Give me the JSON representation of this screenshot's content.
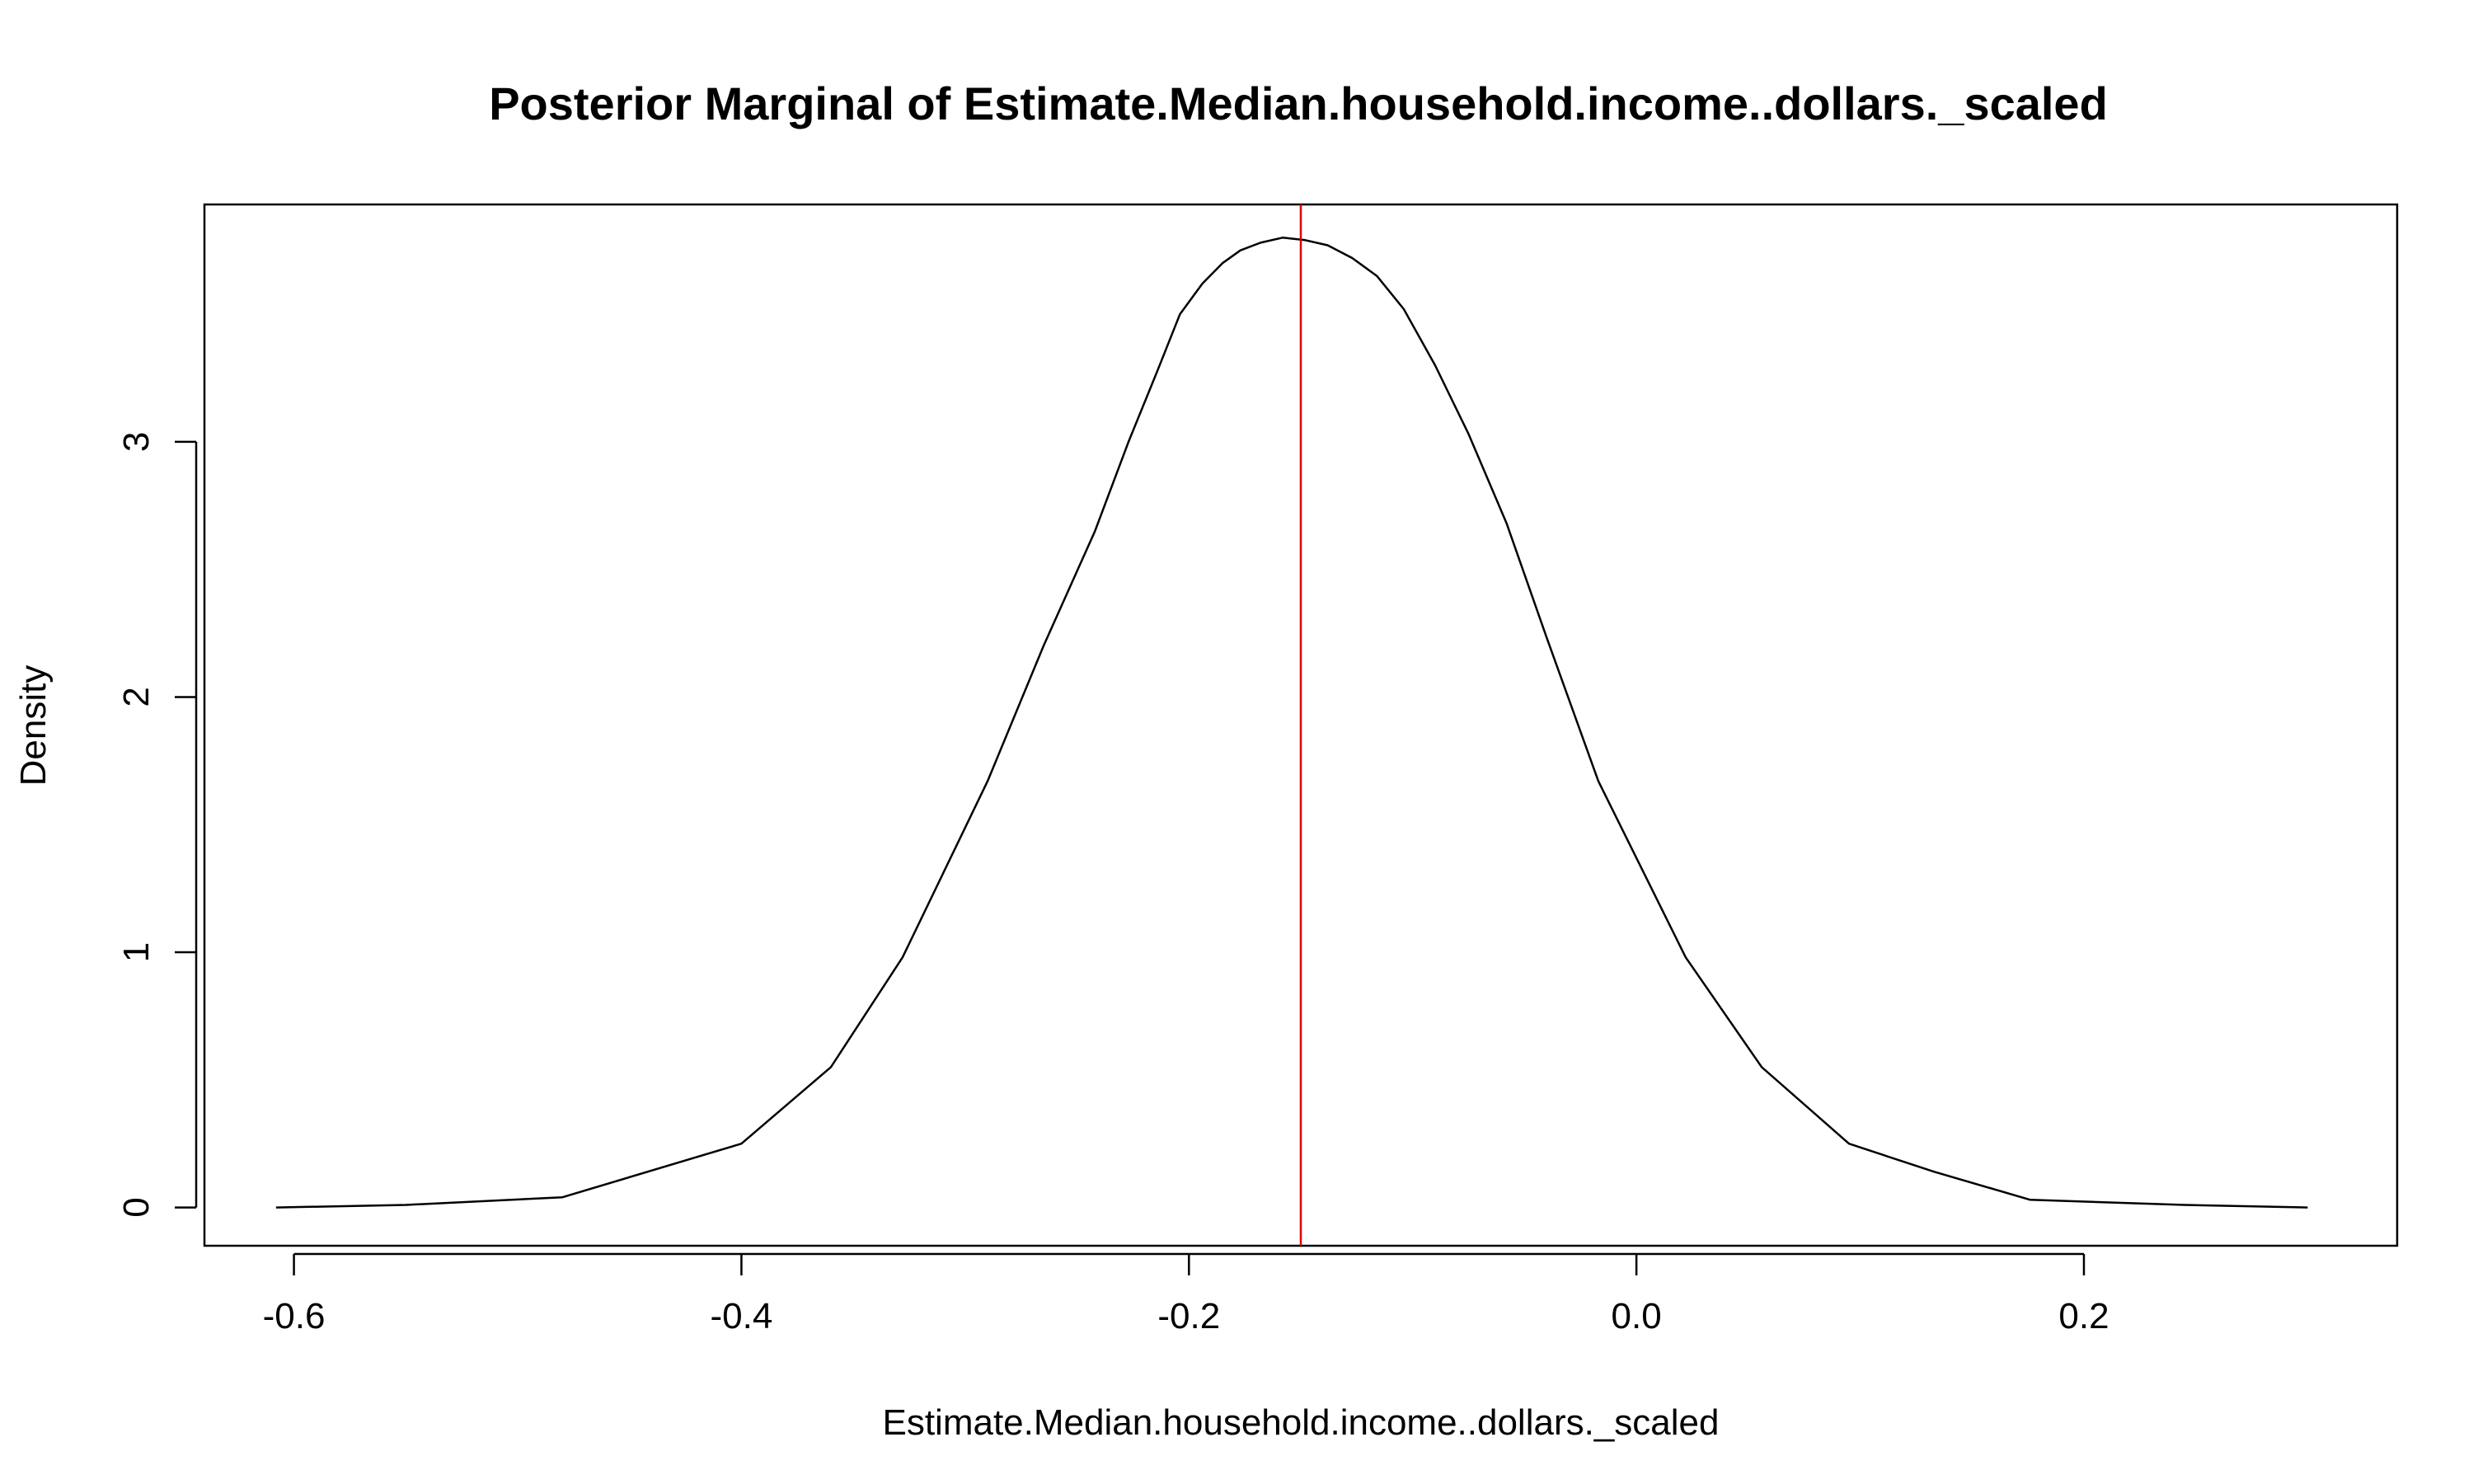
{
  "chart_data": {
    "type": "line",
    "title": "Posterior Marginal of Estimate.Median.household.income..dollars._scaled",
    "xlabel": "Estimate.Median.household.income..dollars._scaled",
    "ylabel": "Density",
    "xlim": [
      -0.64,
      0.34
    ],
    "ylim": [
      -0.15,
      3.93
    ],
    "x_ticks": [
      -0.6,
      -0.4,
      -0.2,
      0.0,
      0.2
    ],
    "x_tick_labels": [
      "-0.6",
      "-0.4",
      "-0.2",
      "0.0",
      "0.2"
    ],
    "y_ticks": [
      0,
      1,
      2,
      3
    ],
    "y_tick_labels": [
      "0",
      "1",
      "2",
      "3"
    ],
    "grid": false,
    "series": [
      {
        "color": "#000000",
        "x": [
          -0.608,
          -0.55,
          -0.48,
          -0.4,
          -0.36,
          -0.328,
          -0.29,
          -0.265,
          -0.242,
          -0.227,
          -0.214,
          -0.204,
          -0.194,
          -0.185,
          -0.177,
          -0.168,
          -0.158,
          -0.148,
          -0.138,
          -0.127,
          -0.116,
          -0.104,
          -0.09,
          -0.075,
          -0.058,
          -0.04,
          -0.017,
          0.022,
          0.056,
          0.095,
          0.133,
          0.176,
          0.245,
          0.3
        ],
        "y": [
          0.0,
          0.01,
          0.04,
          0.25,
          0.55,
          0.98,
          1.67,
          2.2,
          2.65,
          3.0,
          3.28,
          3.5,
          3.62,
          3.7,
          3.75,
          3.78,
          3.8,
          3.79,
          3.77,
          3.72,
          3.65,
          3.52,
          3.3,
          3.03,
          2.68,
          2.23,
          1.67,
          0.98,
          0.55,
          0.25,
          0.14,
          0.03,
          0.01,
          0.0
        ]
      }
    ],
    "vertical_line": {
      "x": -0.15,
      "color": "#dd0000"
    }
  }
}
